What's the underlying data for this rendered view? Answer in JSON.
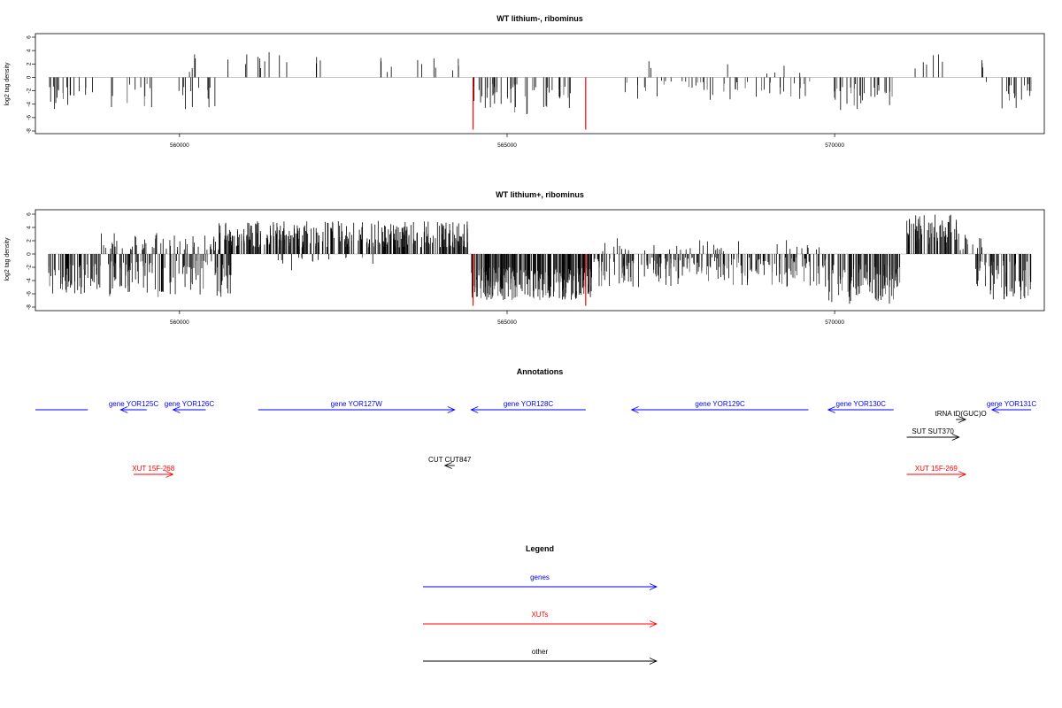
{
  "chart_data": [
    {
      "type": "bar",
      "title": "WT lithium-, ribominus",
      "ylabel": "log2 tag density",
      "xlabel": "",
      "xlim": [
        557800,
        573200
      ],
      "ylim": [
        -8,
        6
      ],
      "xticks": [
        560000,
        565000,
        570000
      ],
      "xtick_labels": [
        "560000",
        "565000",
        "570000"
      ],
      "yticks": [
        -8,
        -6,
        -4,
        -2,
        0,
        2,
        4,
        6
      ],
      "ytick_labels": [
        "-8",
        "-6",
        "-4",
        "-2",
        "0",
        "2",
        "4",
        "6"
      ],
      "grid": false,
      "regions": [
        {
          "start": 558000,
          "end": 558350,
          "sign": -1,
          "min": 1.2,
          "max": 4.8,
          "density": 0.04
        },
        {
          "start": 558350,
          "end": 558700,
          "sign": -1,
          "min": 0.8,
          "max": 3.5,
          "density": 0.015
        },
        {
          "start": 558900,
          "end": 559600,
          "sign": -1,
          "min": 1.0,
          "max": 4.5,
          "density": 0.015
        },
        {
          "start": 559900,
          "end": 560700,
          "sign": -1,
          "min": 1.0,
          "max": 5.0,
          "density": 0.015
        },
        {
          "start": 560000,
          "end": 560600,
          "sign": 1,
          "min": 0.5,
          "max": 3.5,
          "density": 0.006
        },
        {
          "start": 560700,
          "end": 562300,
          "sign": 1,
          "min": 0.8,
          "max": 3.8,
          "density": 0.008
        },
        {
          "start": 563000,
          "end": 564350,
          "sign": 1,
          "min": 0.8,
          "max": 3.2,
          "density": 0.008
        },
        {
          "start": 564450,
          "end": 566000,
          "sign": -1,
          "min": 1.0,
          "max": 5.5,
          "density": 0.035
        },
        {
          "start": 566800,
          "end": 567800,
          "sign": -1,
          "min": 0.5,
          "max": 3.5,
          "density": 0.015
        },
        {
          "start": 566900,
          "end": 567200,
          "sign": 1,
          "min": 0.8,
          "max": 2.5,
          "density": 0.008
        },
        {
          "start": 567800,
          "end": 569700,
          "sign": -1,
          "min": 0.6,
          "max": 3.5,
          "density": 0.018
        },
        {
          "start": 568300,
          "end": 569600,
          "sign": 1,
          "min": 0.5,
          "max": 2.0,
          "density": 0.004
        },
        {
          "start": 569900,
          "end": 570900,
          "sign": -1,
          "min": 1.0,
          "max": 5.0,
          "density": 0.03
        },
        {
          "start": 571000,
          "end": 571800,
          "sign": 1,
          "min": 0.8,
          "max": 3.5,
          "density": 0.008
        },
        {
          "start": 572100,
          "end": 572300,
          "sign": 1,
          "min": 0.8,
          "max": 2.6,
          "density": 0.015
        },
        {
          "start": 572300,
          "end": 573000,
          "sign": -1,
          "min": 0.6,
          "max": 5.0,
          "density": 0.025
        }
      ],
      "highlights": [
        {
          "x": 564480,
          "value": -7.8,
          "color": "#ff0000"
        },
        {
          "x": 566200,
          "value": -7.8,
          "color": "#ff0000"
        }
      ]
    },
    {
      "type": "bar",
      "title": "WT lithium+, ribominus",
      "ylabel": "log2 tag density",
      "xlabel": "",
      "xlim": [
        557800,
        573200
      ],
      "ylim": [
        -8,
        6
      ],
      "xticks": [
        560000,
        565000,
        570000
      ],
      "xtick_labels": [
        "560000",
        "565000",
        "570000"
      ],
      "yticks": [
        -8,
        -6,
        -4,
        -2,
        0,
        2,
        4,
        6
      ],
      "ytick_labels": [
        "-8",
        "-6",
        "-4",
        "-2",
        "0",
        "2",
        "4",
        "6"
      ],
      "grid": false,
      "regions": [
        {
          "start": 558000,
          "end": 558800,
          "sign": -1,
          "min": 1.5,
          "max": 6.0,
          "density": 0.08
        },
        {
          "start": 558900,
          "end": 560800,
          "sign": -1,
          "min": 1.0,
          "max": 6.5,
          "density": 0.06
        },
        {
          "start": 558800,
          "end": 560600,
          "sign": 1,
          "min": 0.5,
          "max": 3.2,
          "density": 0.03
        },
        {
          "start": 560600,
          "end": 564400,
          "sign": 1,
          "min": 1.0,
          "max": 5.0,
          "density": 0.09
        },
        {
          "start": 561500,
          "end": 563000,
          "sign": -1,
          "min": 0.5,
          "max": 2.5,
          "density": 0.01
        },
        {
          "start": 564450,
          "end": 566300,
          "sign": -1,
          "min": 2.0,
          "max": 7.0,
          "density": 0.16
        },
        {
          "start": 566300,
          "end": 569900,
          "sign": -1,
          "min": 0.5,
          "max": 5.0,
          "density": 0.06
        },
        {
          "start": 566400,
          "end": 569800,
          "sign": 1,
          "min": 0.4,
          "max": 2.5,
          "density": 0.01
        },
        {
          "start": 569900,
          "end": 571000,
          "sign": -1,
          "min": 1.5,
          "max": 7.5,
          "density": 0.1
        },
        {
          "start": 571100,
          "end": 571900,
          "sign": 1,
          "min": 1.5,
          "max": 6.0,
          "density": 0.08
        },
        {
          "start": 571900,
          "end": 572250,
          "sign": 1,
          "min": 0.5,
          "max": 3.0,
          "density": 0.04
        },
        {
          "start": 572150,
          "end": 573000,
          "sign": -1,
          "min": 1.0,
          "max": 7.0,
          "density": 0.08
        }
      ],
      "highlights": [
        {
          "x": 564480,
          "value": -7.8,
          "color": "#ff0000"
        },
        {
          "x": 566200,
          "value": -7.8,
          "color": "#ff0000"
        }
      ]
    }
  ],
  "annotations": {
    "title": "Annotations",
    "features": [
      {
        "label": "",
        "category": "gene",
        "start": 557800,
        "end": 558600,
        "strand": "none"
      },
      {
        "label": "gene YOR125C",
        "category": "gene",
        "start": 559100,
        "end": 559500,
        "strand": "-"
      },
      {
        "label": "gene YOR126C",
        "category": "gene",
        "start": 559900,
        "end": 560400,
        "strand": "-"
      },
      {
        "label": "gene YOR127W",
        "category": "gene",
        "start": 561200,
        "end": 564200,
        "strand": "+"
      },
      {
        "label": "gene YOR128C",
        "category": "gene",
        "start": 564450,
        "end": 566200,
        "strand": "-"
      },
      {
        "label": "gene YOR129C",
        "category": "gene",
        "start": 566900,
        "end": 569600,
        "strand": "-"
      },
      {
        "label": "gene YOR130C",
        "category": "gene",
        "start": 569900,
        "end": 570900,
        "strand": "-"
      },
      {
        "label": "gene YOR131C",
        "category": "gene",
        "start": 572400,
        "end": 573000,
        "strand": "-"
      },
      {
        "label": "tRNA tD(GUC)O",
        "category": "other",
        "start": 571850,
        "end": 572000,
        "strand": "+"
      },
      {
        "label": "SUT SUT370",
        "category": "other",
        "start": 571100,
        "end": 571900,
        "strand": "+"
      },
      {
        "label": "CUT CUT847",
        "category": "other",
        "start": 564050,
        "end": 564200,
        "strand": "-"
      },
      {
        "label": "XUT 15F-268",
        "category": "xut",
        "start": 559300,
        "end": 559900,
        "strand": "+"
      },
      {
        "label": "XUT 15F-269",
        "category": "xut",
        "start": 571100,
        "end": 572000,
        "strand": "+"
      }
    ]
  },
  "legend": {
    "title": "Legend",
    "items": [
      {
        "label": "genes",
        "category": "gene"
      },
      {
        "label": "XUTs",
        "category": "xut"
      },
      {
        "label": "other",
        "category": "other"
      }
    ]
  },
  "colors": {
    "gene": "#0000ff",
    "xut": "#ff0000",
    "other": "#000000",
    "bars_pos": "#000000",
    "bars_neg_dark": "#000000",
    "bars_neg_light": "#555555",
    "zero_line": "#bfbfbf",
    "axis": "#000000"
  }
}
